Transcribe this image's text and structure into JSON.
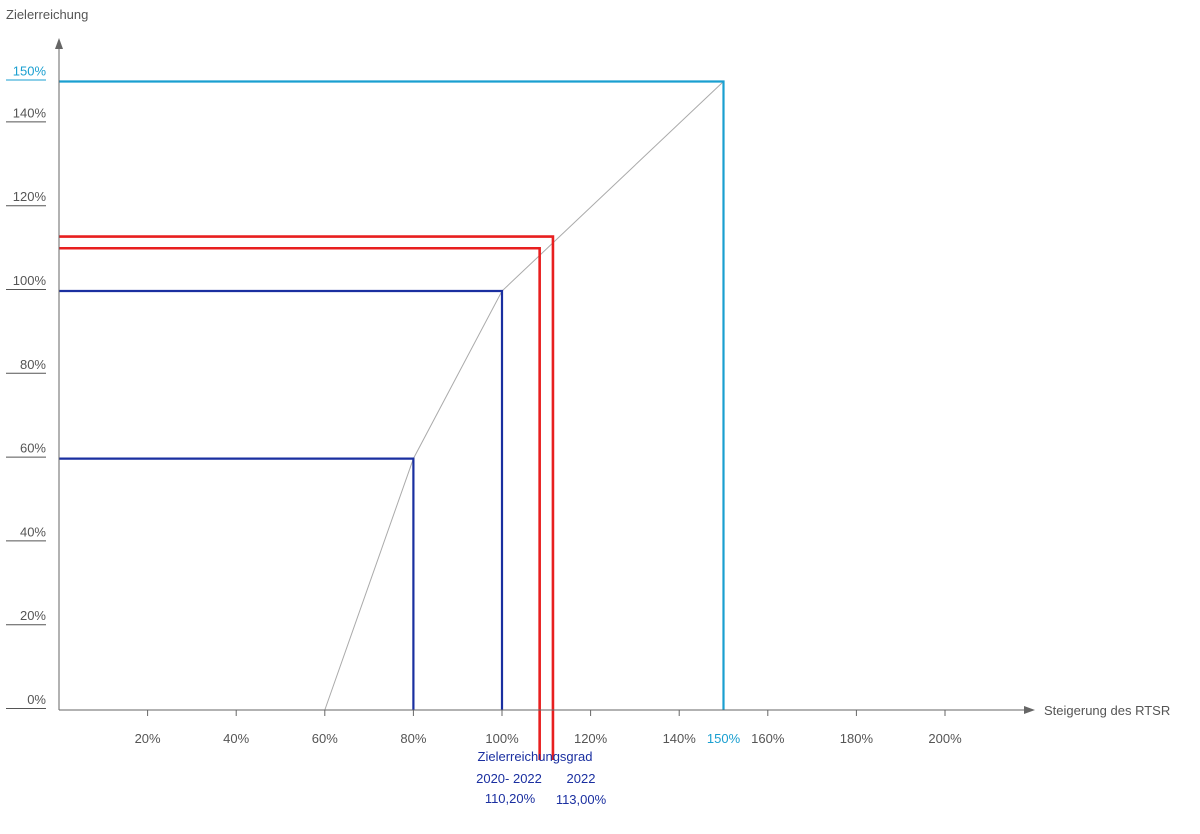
{
  "chart_data": {
    "type": "line",
    "ylabel": "Zielerreichung",
    "xlabel": "Steigerung des RTSR",
    "x_ticks": [
      {
        "value": 20,
        "label": "20%"
      },
      {
        "value": 40,
        "label": "40%"
      },
      {
        "value": 60,
        "label": "60%"
      },
      {
        "value": 80,
        "label": "80%"
      },
      {
        "value": 100,
        "label": "100%"
      },
      {
        "value": 120,
        "label": "120%"
      },
      {
        "value": 140,
        "label": "140%"
      },
      {
        "value": 150,
        "label": "150%",
        "highlight": true
      },
      {
        "value": 160,
        "label": "160%"
      },
      {
        "value": 180,
        "label": "180%"
      },
      {
        "value": 200,
        "label": "200%"
      }
    ],
    "y_ticks": [
      {
        "value": 0,
        "label": "0%"
      },
      {
        "value": 20,
        "label": "20%"
      },
      {
        "value": 40,
        "label": "40%"
      },
      {
        "value": 60,
        "label": "60%"
      },
      {
        "value": 80,
        "label": "80%"
      },
      {
        "value": 100,
        "label": "100%"
      },
      {
        "value": 120,
        "label": "120%"
      },
      {
        "value": 140,
        "label": "140%"
      },
      {
        "value": 150,
        "label": "150%",
        "highlight": true
      }
    ],
    "xlim": [
      0,
      225
    ],
    "ylim": [
      0,
      157
    ],
    "curve": [
      [
        60,
        0
      ],
      [
        80,
        60
      ],
      [
        100,
        100
      ],
      [
        150,
        150
      ]
    ],
    "markers": [
      {
        "x": 80,
        "y": 60,
        "color": "#1a2fa0"
      },
      {
        "x": 100,
        "y": 100,
        "color": "#1a2fa0"
      },
      {
        "x": 108.5,
        "y": 110.2,
        "color": "#e81f1f"
      },
      {
        "x": 111.5,
        "y": 113.0,
        "color": "#e81f1f"
      },
      {
        "x": 150,
        "y": 150,
        "color": "#1a9fd0"
      }
    ],
    "annotation": {
      "title": "Zielerreichungsgrad",
      "items": [
        {
          "period": "2020- 2022",
          "value": "110,20%"
        },
        {
          "period": "2022",
          "value": "113,00%"
        }
      ]
    },
    "colors": {
      "axis": "#666666",
      "text": "#555555",
      "curve": "#aaaaaa",
      "navy": "#1a2fa0",
      "red": "#e81f1f",
      "cyan": "#1a9fd0"
    }
  }
}
